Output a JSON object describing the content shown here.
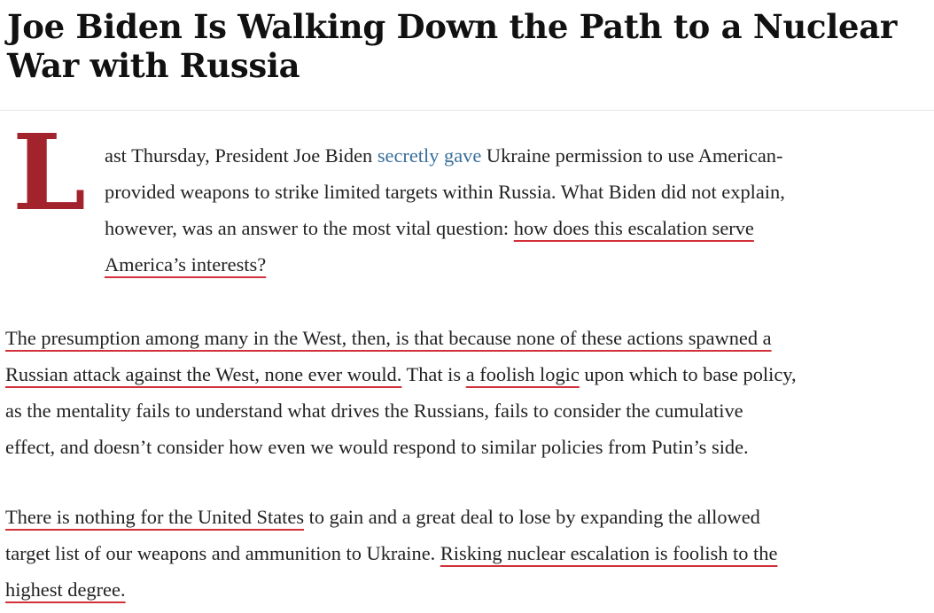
{
  "article": {
    "headline_line1": "Joe Biden Is Walking Down the Path to a Nuclear",
    "headline_line2": "War with Russia",
    "drop_cap": "L",
    "colors": {
      "drop_cap": "#a3232d",
      "link": "#3a6f9a",
      "underline": "#d2303a"
    },
    "paragraphs": [
      [
        [
          {
            "t": "ast Thursday, President Joe Biden "
          },
          {
            "t": "secretly gave",
            "s": "link"
          },
          {
            "t": " Ukraine permission to use American-"
          }
        ],
        [
          {
            "t": "provided weapons to strike limited targets within Russia. What Biden did not explain,"
          }
        ],
        [
          {
            "t": "however, was an answer to the most vital question: "
          },
          {
            "t": "how does this escalation serve",
            "s": "ul"
          }
        ],
        [
          {
            "t": "America’s interests?",
            "s": "ul"
          }
        ]
      ],
      [
        [
          {
            "t": "The presumption among many in the West, then, is that because none of these actions spawned a",
            "s": "ul"
          }
        ],
        [
          {
            "t": "Russian attack against the West, none ever would.",
            "s": "ul"
          },
          {
            "t": "  That is "
          },
          {
            "t": "a foolish logic",
            "s": "ul"
          },
          {
            "t": " upon which to base policy,"
          }
        ],
        [
          {
            "t": "as the mentality fails to understand what drives the Russians, fails to consider the cumulative"
          }
        ],
        [
          {
            "t": "effect, and doesn’t consider how even we would respond to similar policies from Putin’s side."
          }
        ]
      ],
      [
        [
          {
            "t": "There is nothing for the United States",
            "s": "ul"
          },
          {
            "t": " to gain and a great deal to lose by expanding the allowed"
          }
        ],
        [
          {
            "t": "target list of our weapons and ammunition to Ukraine. "
          },
          {
            "t": "Risking nuclear escalation is foolish to the",
            "s": "ul"
          }
        ],
        [
          {
            "t": "highest degree.",
            "s": "ul"
          }
        ]
      ]
    ]
  }
}
